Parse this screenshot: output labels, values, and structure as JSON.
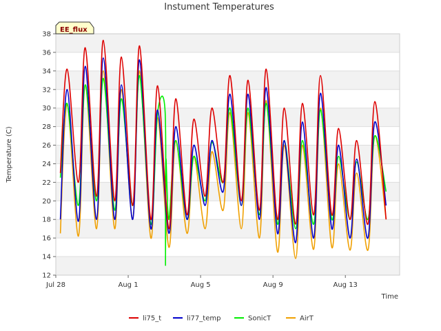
{
  "chart_data": {
    "type": "line",
    "title": "Instument Temperatures",
    "xlabel": "Time",
    "ylabel": "Temperature (C)",
    "badge": "EE_flux",
    "xlim": [
      "2023-07-28",
      "2023-08-16"
    ],
    "ylim": [
      12,
      38
    ],
    "yticks": [
      12,
      14,
      16,
      18,
      20,
      22,
      24,
      26,
      28,
      30,
      32,
      34,
      36,
      38
    ],
    "xticks": [
      {
        "label": "Jul 28",
        "date": "2023-07-28"
      },
      {
        "label": "Aug 1",
        "date": "2023-08-01"
      },
      {
        "label": "Aug 5",
        "date": "2023-08-05"
      },
      {
        "label": "Aug 9",
        "date": "2023-08-09"
      },
      {
        "label": "Aug 13",
        "date": "2023-08-13"
      }
    ],
    "background_bands": true,
    "legend_position": "bottom-center",
    "x": [
      "2023-07-28 06:00",
      "2023-07-28 15:00",
      "2023-07-29 06:00",
      "2023-07-29 15:00",
      "2023-07-30 06:00",
      "2023-07-30 15:00",
      "2023-07-31 06:00",
      "2023-07-31 15:00",
      "2023-08-01 06:00",
      "2023-08-01 15:00",
      "2023-08-02 06:00",
      "2023-08-02 15:00",
      "2023-08-03 06:00",
      "2023-08-03 15:00",
      "2023-08-04 06:00",
      "2023-08-04 15:00",
      "2023-08-05 06:00",
      "2023-08-05 15:00",
      "2023-08-06 06:00",
      "2023-08-06 15:00",
      "2023-08-07 06:00",
      "2023-08-07 15:00",
      "2023-08-08 06:00",
      "2023-08-08 15:00",
      "2023-08-09 06:00",
      "2023-08-09 15:00",
      "2023-08-10 06:00",
      "2023-08-10 15:00",
      "2023-08-11 06:00",
      "2023-08-11 15:00",
      "2023-08-12 06:00",
      "2023-08-12 15:00",
      "2023-08-13 06:00",
      "2023-08-13 15:00",
      "2023-08-14 06:00",
      "2023-08-14 15:00",
      "2023-08-15 06:00"
    ],
    "series": [
      {
        "name": "li75_t",
        "color": "#dd0000",
        "values": [
          23.0,
          34.2,
          22.0,
          36.5,
          20.5,
          37.3,
          20.0,
          35.5,
          19.5,
          36.7,
          18.0,
          32.4,
          17.0,
          31.0,
          18.5,
          28.8,
          20.5,
          30.0,
          22.0,
          33.5,
          20.0,
          33.0,
          19.0,
          34.2,
          18.0,
          30.0,
          17.5,
          30.5,
          18.5,
          33.5,
          18.5,
          27.8,
          18.0,
          26.5,
          17.5,
          30.7,
          18.0
        ]
      },
      {
        "name": "li77_temp",
        "color": "#0000cc",
        "values": [
          18.0,
          32.0,
          17.8,
          34.5,
          18.0,
          35.4,
          18.0,
          32.5,
          18.0,
          35.2,
          17.0,
          29.8,
          16.5,
          28.0,
          18.0,
          26.0,
          19.5,
          26.5,
          21.0,
          31.5,
          19.5,
          31.5,
          18.0,
          32.2,
          16.5,
          26.5,
          15.5,
          28.5,
          16.0,
          31.6,
          17.0,
          26.0,
          16.0,
          24.5,
          16.0,
          28.5,
          19.5
        ]
      },
      {
        "name": "SonicT",
        "color": "#00ee00",
        "values": [
          22.5,
          30.5,
          19.5,
          32.5,
          20.0,
          33.2,
          19.0,
          31.0,
          19.5,
          33.5,
          17.5,
          29.5,
          18.0,
          26.5,
          18.0,
          24.8,
          20.0,
          26.3,
          22.0,
          30.0,
          19.5,
          30.0,
          18.5,
          30.5,
          17.5,
          26.5,
          17.0,
          26.5,
          17.5,
          29.8,
          18.0,
          24.8,
          18.0,
          24.2,
          18.0,
          27.0,
          21.0
        ]
      },
      {
        "name": "AirT",
        "color": "#f0a000",
        "values": [
          16.5,
          30.4,
          16.2,
          32.5,
          17.0,
          34.0,
          17.0,
          32.0,
          18.0,
          34.0,
          16.0,
          29.0,
          15.0,
          26.5,
          16.5,
          24.8,
          17.0,
          25.3,
          19.0,
          29.5,
          17.0,
          29.5,
          16.0,
          30.8,
          14.5,
          26.0,
          13.8,
          26.0,
          14.8,
          30.0,
          15.0,
          24.0,
          14.7,
          23.0,
          14.7,
          27.0,
          18.0
        ]
      }
    ],
    "sonic_spike": {
      "x": "2023-08-03 01:00",
      "y": 13.1
    }
  }
}
